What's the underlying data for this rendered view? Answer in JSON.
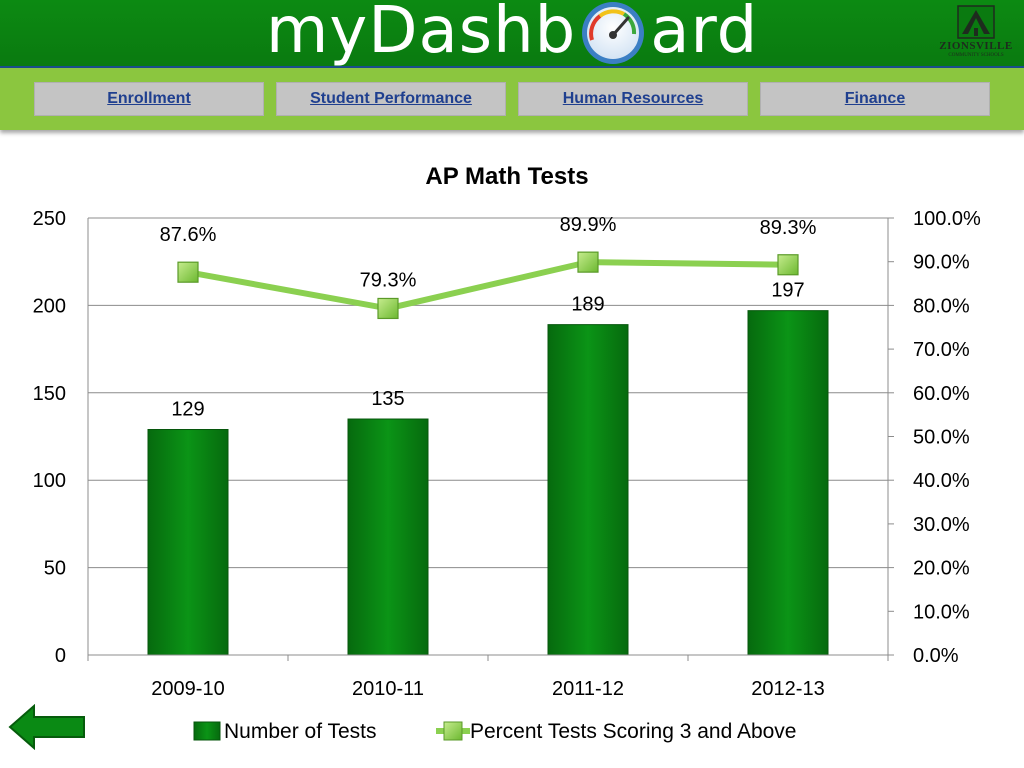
{
  "header": {
    "brand_left": "myDashb",
    "brand_right": "ard",
    "logo_text": "ZIONSVILLE",
    "logo_subtext": "COMMUNITY SCHOOLS",
    "logo_icon": "tree-emblem-icon",
    "gauge_icon": "speedometer-gauge-icon"
  },
  "nav": {
    "items": [
      {
        "label": "Enrollment"
      },
      {
        "label": "Student Performance"
      },
      {
        "label": "Human Resources"
      },
      {
        "label": "Finance"
      }
    ]
  },
  "footer": {
    "back_icon": "back-arrow-icon"
  },
  "colors": {
    "header_green": "#0a7a10",
    "nav_band": "#8bc63f",
    "bar_green": "#0a8a14",
    "line_green": "#8bd050",
    "nav_text": "#1f3f8f"
  },
  "chart_data": {
    "type": "bar",
    "title": "AP Math Tests",
    "categories": [
      "2009-10",
      "2010-11",
      "2011-12",
      "2012-13"
    ],
    "series": [
      {
        "name": "Number of Tests",
        "type": "bar",
        "axis": "left",
        "values": [
          129,
          135,
          189,
          197
        ],
        "labels": [
          "129",
          "135",
          "189",
          "197"
        ]
      },
      {
        "name": "Percent Tests Scoring 3 and Above",
        "type": "line",
        "axis": "right",
        "values": [
          87.6,
          79.3,
          89.9,
          89.3
        ],
        "labels": [
          "87.6%",
          "79.3%",
          "89.9%",
          "89.3%"
        ]
      }
    ],
    "left_axis": {
      "min": 0,
      "max": 250,
      "ticks": [
        "0",
        "50",
        "100",
        "150",
        "200",
        "250"
      ]
    },
    "right_axis": {
      "min": 0,
      "max": 100,
      "ticks": [
        "0.0%",
        "10.0%",
        "20.0%",
        "30.0%",
        "40.0%",
        "50.0%",
        "60.0%",
        "70.0%",
        "80.0%",
        "90.0%",
        "100.0%"
      ]
    },
    "grid": true,
    "legend_position": "bottom"
  }
}
